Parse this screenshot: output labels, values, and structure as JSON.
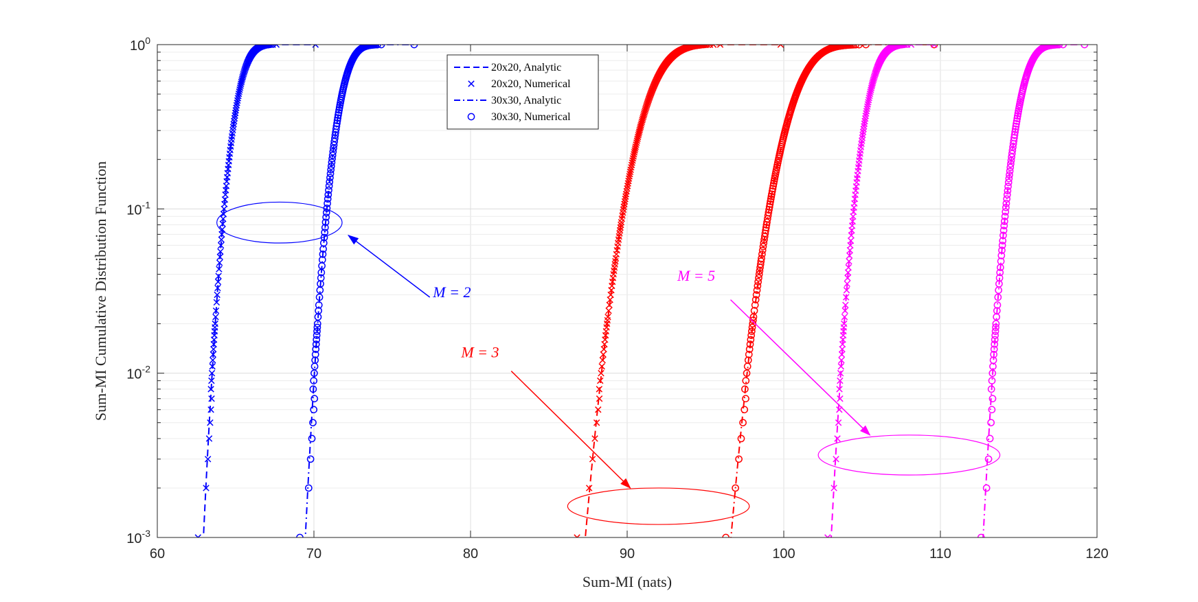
{
  "chart_data": {
    "type": "line",
    "title": "",
    "xlabel": "Sum-MI (nats)",
    "ylabel": "Sum-MI Cumulative Distribution Function",
    "xlim": [
      60,
      120
    ],
    "ylim": [
      0.001,
      1
    ],
    "yscale": "log",
    "grid": true,
    "x_ticks": [
      "60",
      "70",
      "80",
      "90",
      "100",
      "110",
      "120"
    ],
    "y_ticks": [
      {
        "base": "10",
        "exp": "-3",
        "value": 0.001
      },
      {
        "base": "10",
        "exp": "-2",
        "value": 0.01
      },
      {
        "base": "10",
        "exp": "-1",
        "value": 0.1
      },
      {
        "base": "10",
        "exp": "0",
        "value": 1
      }
    ],
    "legend": {
      "placement": "top-center",
      "entries": [
        {
          "label": "20x20, Analytic",
          "style": "dashed"
        },
        {
          "label": "20x20, Numerical",
          "marker": "x"
        },
        {
          "label": "30x30, Analytic",
          "style": "dashdot"
        },
        {
          "label": "30x30, Numerical",
          "marker": "o"
        }
      ]
    },
    "series": [
      {
        "name": "M=2, 20x20",
        "color": "#0000ff",
        "mu": 65.2,
        "sigma": 0.73,
        "xmax": 70.1,
        "marker": "x",
        "line": "dashed",
        "x_at_min": 62.6
      },
      {
        "name": "M=2, 30x30",
        "color": "#0000ff",
        "mu": 71.8,
        "sigma": 0.76,
        "xmax": 76.4,
        "marker": "o",
        "line": "dashdot",
        "x_at_min": 69.1
      },
      {
        "name": "M=3, 20x20",
        "color": "#ff0000",
        "mu": 91.5,
        "sigma": 1.35,
        "xmax": 99.8,
        "marker": "x",
        "line": "dashed",
        "x_at_min": 86.8
      },
      {
        "name": "M=3, 30x30",
        "color": "#ff0000",
        "mu": 100.8,
        "sigma": 1.35,
        "xmax": 109.6,
        "marker": "o",
        "line": "dashdot",
        "x_at_min": 96.3
      },
      {
        "name": "M=5, 20x20",
        "color": "#ff00ff",
        "mu": 105.5,
        "sigma": 0.8,
        "xmax": 109.6,
        "marker": "x",
        "line": "dashed",
        "x_at_min": 102.8
      },
      {
        "name": "M=5, 30x30",
        "color": "#ff00ff",
        "mu": 115.2,
        "sigma": 0.8,
        "xmax": 119.2,
        "marker": "o",
        "line": "dashdot",
        "x_at_min": 112.6
      }
    ],
    "annotations": [
      {
        "label": "M = 2",
        "color": "#0000ff",
        "ellipse_center": [
          67.8,
          0.082
        ],
        "ellipse_rx": 4.0,
        "ellipse_y_extent": [
          0.062,
          0.11
        ],
        "text_at": [
          77.6,
          0.029
        ],
        "arrow_from": [
          77.4,
          0.029
        ],
        "arrow_to": [
          72.2,
          0.069
        ]
      },
      {
        "label": "M = 3",
        "color": "#ff0000",
        "text_at": [
          79.4,
          0.0125
        ],
        "ellipse_center": [
          92.0,
          0.0015
        ],
        "ellipse_rx": 5.8,
        "ellipse_y_extent": [
          0.0012,
          0.002
        ],
        "arrow_from": [
          82.6,
          0.0103
        ],
        "arrow_to": [
          90.2,
          0.002
        ]
      },
      {
        "label": "M = 5",
        "color": "#ff00ff",
        "text_at": [
          93.2,
          0.0365
        ],
        "ellipse_center": [
          108.0,
          0.0032
        ],
        "ellipse_rx": 5.8,
        "ellipse_y_extent": [
          0.0024,
          0.0042
        ],
        "arrow_from": [
          96.6,
          0.028
        ],
        "arrow_to": [
          105.5,
          0.0042
        ]
      }
    ]
  }
}
